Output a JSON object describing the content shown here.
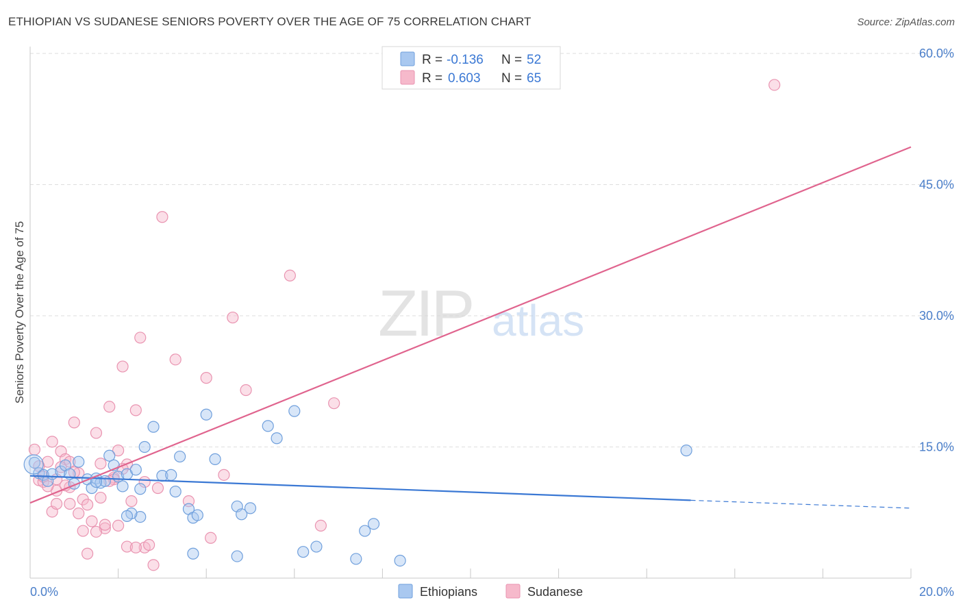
{
  "title": "ETHIOPIAN VS SUDANESE SENIORS POVERTY OVER THE AGE OF 75 CORRELATION CHART",
  "source": "Source: ZipAtlas.com",
  "watermark": {
    "zip": "ZIP",
    "atlas": "atlas"
  },
  "colors": {
    "blue_fill": "#a9c8f0",
    "blue_stroke": "#6f9fdc",
    "blue_line": "#3a78d4",
    "pink_fill": "#f6b9cb",
    "pink_stroke": "#e993b0",
    "pink_line": "#e0648e",
    "axis_text": "#4a7ec9",
    "grid": "#dedede"
  },
  "legend_stats": [
    {
      "r_label": "R =",
      "r_value": "-0.136",
      "n_label": "N =",
      "n_value": "52"
    },
    {
      "r_label": "R =",
      "r_value": "0.603",
      "n_label": "N =",
      "n_value": "65"
    }
  ],
  "chart_data": {
    "type": "scatter",
    "title": "ETHIOPIAN VS SUDANESE SENIORS POVERTY OVER THE AGE OF 75 CORRELATION CHART",
    "xlabel": "",
    "ylabel": "Seniors Poverty Over the Age of 75",
    "xlim": [
      0,
      20
    ],
    "ylim": [
      0,
      60
    ],
    "x_ticks": [
      "0.0%",
      "20.0%"
    ],
    "y_ticks": [
      "15.0%",
      "30.0%",
      "45.0%",
      "60.0%"
    ],
    "y_tick_values": [
      15,
      30,
      45,
      60
    ],
    "grid": true,
    "legend_position": "bottom",
    "series": [
      {
        "name": "Ethiopians",
        "color": "#a9c8f0",
        "points": [
          [
            0.1,
            13.2
          ],
          [
            0.2,
            12.0
          ],
          [
            0.3,
            11.8
          ],
          [
            0.4,
            11.1
          ],
          [
            0.5,
            11.9
          ],
          [
            0.7,
            12.2
          ],
          [
            0.8,
            12.9
          ],
          [
            0.9,
            11.9
          ],
          [
            1.0,
            10.8
          ],
          [
            1.1,
            13.3
          ],
          [
            1.3,
            11.3
          ],
          [
            1.4,
            10.3
          ],
          [
            1.5,
            11.4
          ],
          [
            1.6,
            10.9
          ],
          [
            1.7,
            11.1
          ],
          [
            1.8,
            14.0
          ],
          [
            1.9,
            12.9
          ],
          [
            2.0,
            11.6
          ],
          [
            2.1,
            10.5
          ],
          [
            2.2,
            11.9
          ],
          [
            2.4,
            12.4
          ],
          [
            2.5,
            10.2
          ],
          [
            2.6,
            15.0
          ],
          [
            2.8,
            17.3
          ],
          [
            3.0,
            11.7
          ],
          [
            3.2,
            11.8
          ],
          [
            3.3,
            9.9
          ],
          [
            3.4,
            13.9
          ],
          [
            3.6,
            7.9
          ],
          [
            3.7,
            6.9
          ],
          [
            3.8,
            7.2
          ],
          [
            4.0,
            18.7
          ],
          [
            4.2,
            13.6
          ],
          [
            4.7,
            8.2
          ],
          [
            4.8,
            7.3
          ],
          [
            5.0,
            8.0
          ],
          [
            5.4,
            17.4
          ],
          [
            5.6,
            16.0
          ],
          [
            6.0,
            19.1
          ],
          [
            6.2,
            3.0
          ],
          [
            6.5,
            3.6
          ],
          [
            7.4,
            2.2
          ],
          [
            7.8,
            6.2
          ],
          [
            7.6,
            5.4
          ],
          [
            8.4,
            2.0
          ],
          [
            3.7,
            2.8
          ],
          [
            4.7,
            2.5
          ],
          [
            2.5,
            7.0
          ],
          [
            2.3,
            7.4
          ],
          [
            2.2,
            7.1
          ],
          [
            14.9,
            14.6
          ],
          [
            1.5,
            11.0
          ]
        ]
      },
      {
        "name": "Sudanese",
        "color": "#f6b9cb",
        "points": [
          [
            0.1,
            14.7
          ],
          [
            0.2,
            11.2
          ],
          [
            0.3,
            11.0
          ],
          [
            0.4,
            13.3
          ],
          [
            0.5,
            15.6
          ],
          [
            0.6,
            10.0
          ],
          [
            0.7,
            14.5
          ],
          [
            0.8,
            13.6
          ],
          [
            0.9,
            10.4
          ],
          [
            1.0,
            17.8
          ],
          [
            1.1,
            12.0
          ],
          [
            1.2,
            9.0
          ],
          [
            1.3,
            8.4
          ],
          [
            1.4,
            6.5
          ],
          [
            1.5,
            16.6
          ],
          [
            1.6,
            13.1
          ],
          [
            1.7,
            5.7
          ],
          [
            1.8,
            19.6
          ],
          [
            1.9,
            11.5
          ],
          [
            2.0,
            14.6
          ],
          [
            2.1,
            24.2
          ],
          [
            2.2,
            13.0
          ],
          [
            2.3,
            8.8
          ],
          [
            2.4,
            19.2
          ],
          [
            2.5,
            27.5
          ],
          [
            2.6,
            3.5
          ],
          [
            2.7,
            3.8
          ],
          [
            2.8,
            1.5
          ],
          [
            2.9,
            10.3
          ],
          [
            3.0,
            41.3
          ],
          [
            3.3,
            25.0
          ],
          [
            3.6,
            8.8
          ],
          [
            4.0,
            22.9
          ],
          [
            4.1,
            4.6
          ],
          [
            4.4,
            11.8
          ],
          [
            4.6,
            29.8
          ],
          [
            4.9,
            21.5
          ],
          [
            5.9,
            34.6
          ],
          [
            6.6,
            6.0
          ],
          [
            6.9,
            20.0
          ],
          [
            0.5,
            7.6
          ],
          [
            0.6,
            8.5
          ],
          [
            0.8,
            10.6
          ],
          [
            0.9,
            8.5
          ],
          [
            1.0,
            12.1
          ],
          [
            1.1,
            7.4
          ],
          [
            1.2,
            5.4
          ],
          [
            1.3,
            2.8
          ],
          [
            1.6,
            9.2
          ],
          [
            1.7,
            6.1
          ],
          [
            1.9,
            11.3
          ],
          [
            2.0,
            6.0
          ],
          [
            2.2,
            3.6
          ],
          [
            2.4,
            3.5
          ],
          [
            2.6,
            11.0
          ],
          [
            0.3,
            11.6
          ],
          [
            0.4,
            10.5
          ],
          [
            0.7,
            12.7
          ],
          [
            0.9,
            13.3
          ],
          [
            1.5,
            5.3
          ],
          [
            1.8,
            11.1
          ],
          [
            2.1,
            12.5
          ],
          [
            0.2,
            12.8
          ],
          [
            0.6,
            11.3
          ],
          [
            16.9,
            56.4
          ]
        ]
      }
    ],
    "trend_lines": [
      {
        "series": "Ethiopians",
        "x": [
          0,
          15.0
        ],
        "y": [
          11.7,
          8.9
        ],
        "dashed_extension_x": [
          15.0,
          20.0
        ],
        "dashed_extension_y": [
          8.9,
          8.0
        ]
      },
      {
        "series": "Sudanese",
        "x": [
          0,
          20.0
        ],
        "y": [
          8.6,
          49.3
        ]
      }
    ]
  }
}
